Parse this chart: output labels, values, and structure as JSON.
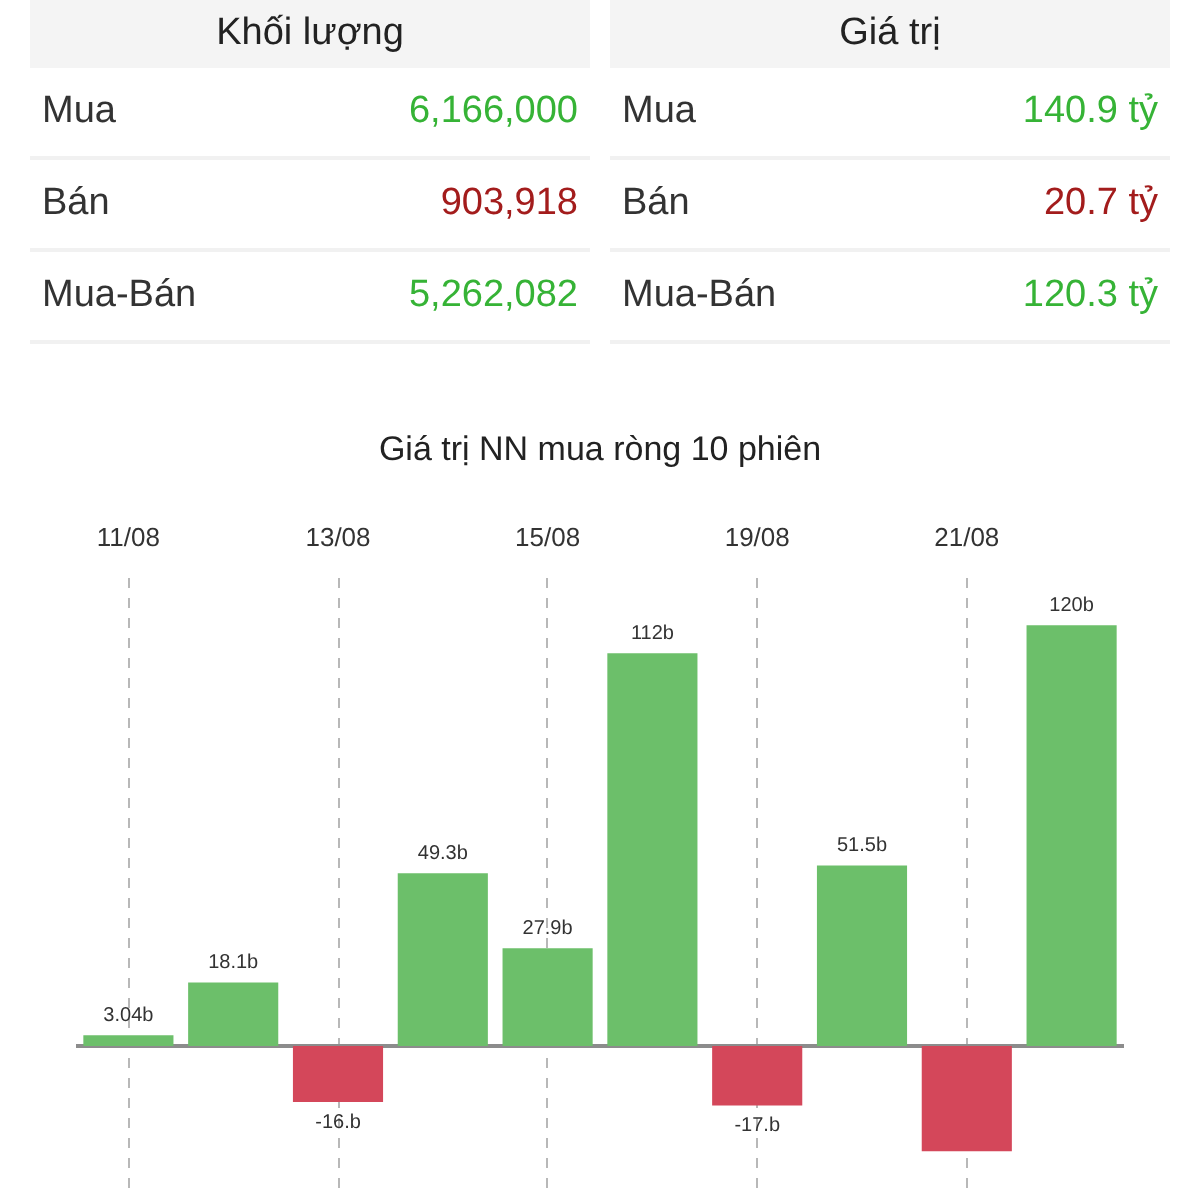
{
  "chart_data": [
    {
      "type": "other",
      "title": "Khối lượng",
      "categories": [
        "Mua",
        "Bán",
        "Mua-Bán"
      ],
      "value_labels": [
        "6,166,000",
        "903,918",
        "5,262,082"
      ],
      "colors": [
        "#36b336",
        "#a31c1c",
        "#36b336"
      ]
    },
    {
      "type": "other",
      "title": "Giá trị",
      "categories": [
        "Mua",
        "Bán",
        "Mua-Bán"
      ],
      "value_labels": [
        "140.9 tỷ",
        "20.7 tỷ",
        "120.3 tỷ"
      ],
      "colors": [
        "#36b336",
        "#a31c1c",
        "#36b336"
      ]
    },
    {
      "type": "bar",
      "title": "Giá trị NN mua ròng 10 phiên",
      "categories": [
        "11/08",
        null,
        "13/08",
        null,
        "15/08",
        null,
        "19/08",
        null,
        "21/08",
        null
      ],
      "values": [
        3.04,
        18.1,
        -16,
        49.3,
        27.9,
        112,
        -17,
        51.5,
        -30,
        120
      ],
      "colors": [
        "#6cbf6a",
        "#6cbf6a",
        "#d4475a",
        "#6cbf6a",
        "#6cbf6a",
        "#6cbf6a",
        "#d4475a",
        "#6cbf6a",
        "#d4475a",
        "#6cbf6a"
      ],
      "value_labels": [
        "3.04b",
        "18.1b",
        "-16.b",
        "49.3b",
        "27.9b",
        "112b",
        "-17.b",
        "51.5b",
        null,
        "120b"
      ],
      "grid": "x",
      "tick_labels": "x"
    }
  ]
}
